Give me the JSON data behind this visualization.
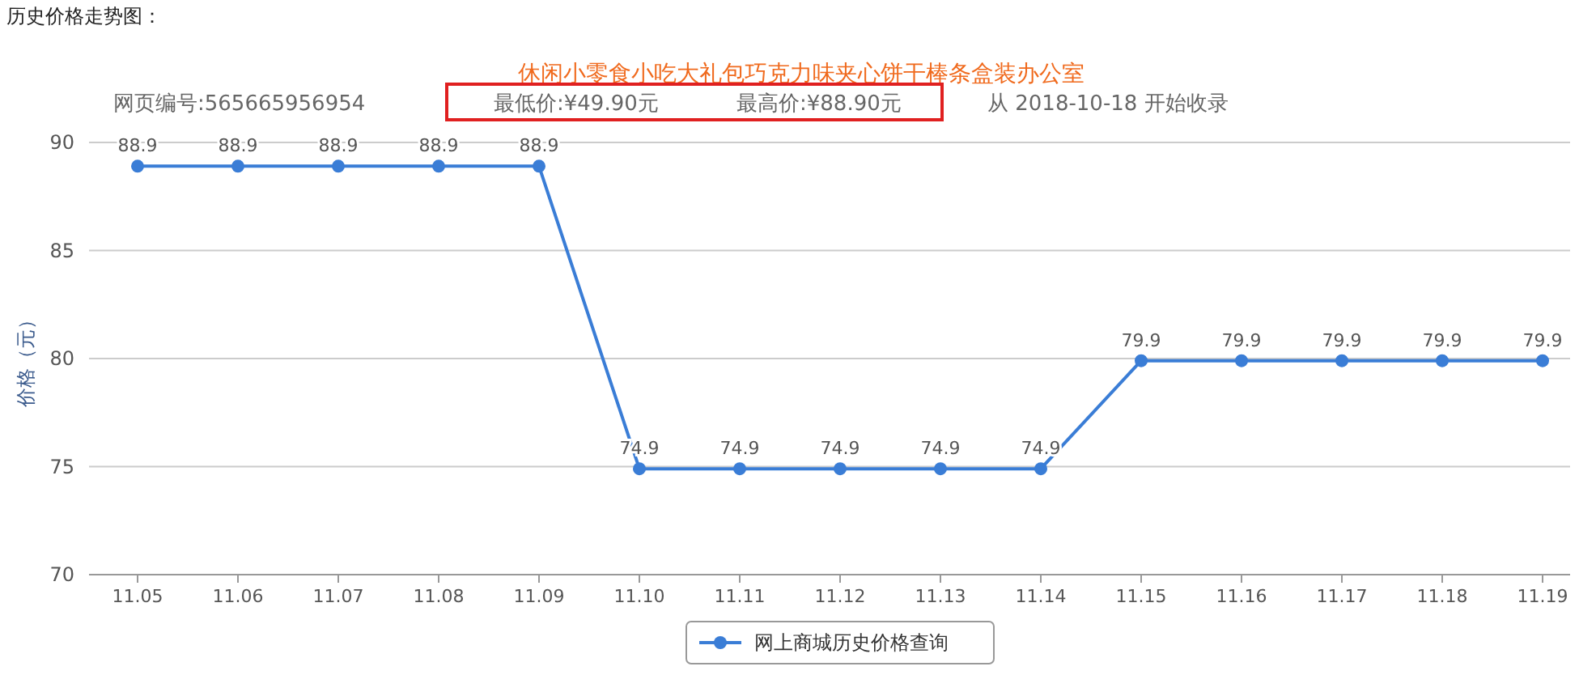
{
  "chart_data": {
    "type": "line",
    "title": "历史价格走势图：",
    "subtitle": "休闲小零食小吃大礼包巧克力味夹心饼干棒条盒装办公室",
    "annotations": [
      "网页编号:565665956954",
      "最低价:¥49.90元",
      "最高价:¥88.90元",
      "从 2018-10-18 开始收录"
    ],
    "ylabel": "价格（元）",
    "categories": [
      "11.05",
      "11.06",
      "11.07",
      "11.08",
      "11.09",
      "11.10",
      "11.11",
      "11.12",
      "11.13",
      "11.14",
      "11.15",
      "11.16",
      "11.17",
      "11.18",
      "11.19"
    ],
    "series": [
      {
        "name": "网上商城历史价格查询",
        "color": "#3a7dd6",
        "values": [
          88.9,
          88.9,
          88.9,
          88.9,
          88.9,
          74.9,
          74.9,
          74.9,
          74.9,
          74.9,
          79.9,
          79.9,
          79.9,
          79.9,
          79.9
        ]
      }
    ],
    "ylim": [
      70,
      90
    ],
    "yticks": [
      70,
      75,
      80,
      85,
      90
    ],
    "grid": "y",
    "legend": "bottom",
    "marker": "circle",
    "data_labels": true
  }
}
